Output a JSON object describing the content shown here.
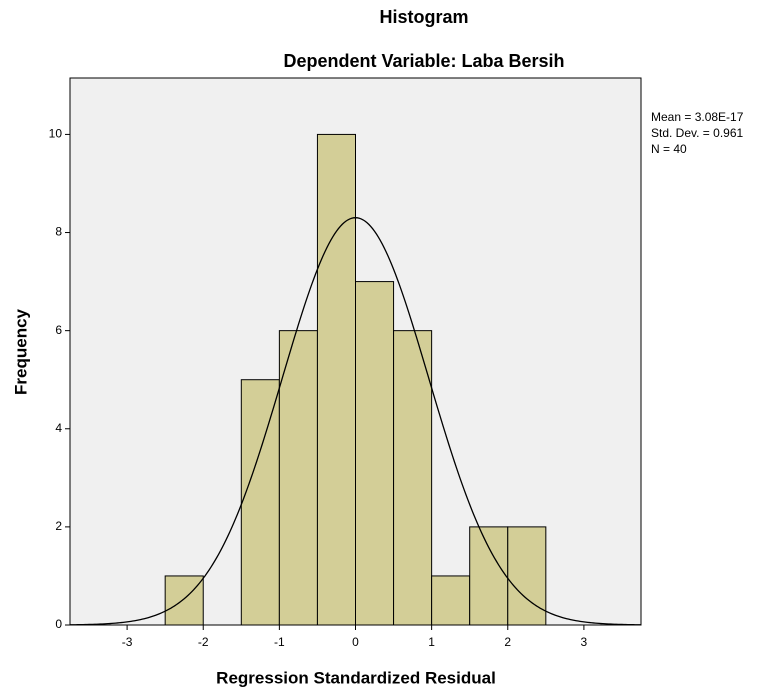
{
  "chart_data": {
    "type": "histogram",
    "title": "Histogram",
    "subtitle": "Dependent Variable: Laba Bersih",
    "xlabel": "Regression Standardized Residual",
    "ylabel": "Frequency",
    "bins": [
      -2.5,
      -2,
      -1.5,
      -1,
      -0.5,
      0,
      0.5,
      1,
      1.5,
      2,
      2.5
    ],
    "values": [
      1,
      0,
      5,
      6,
      10,
      7,
      6,
      1,
      2,
      2
    ],
    "color": "#d3ce97",
    "xlim": [
      -3.75,
      3.75
    ],
    "xticks": [
      -3,
      -2,
      -1,
      0,
      1,
      2,
      3
    ],
    "ylim": [
      0,
      11.15
    ],
    "yticks": [
      0,
      2,
      4,
      6,
      8,
      10
    ],
    "stats": [
      {
        "label": "Mean = 3.08E-17",
        "value": 3.08e-17
      },
      {
        "label": "Std. Dev. = 0.961",
        "value": 0.961
      },
      {
        "label": "N = 40",
        "value": 40
      }
    ]
  }
}
